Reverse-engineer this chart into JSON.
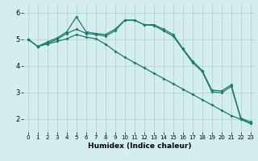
{
  "xlabel": "Humidex (Indice chaleur)",
  "bg_color": "#d4eeed",
  "line_color": "#1a7a6e",
  "grid_color": "#aacfcf",
  "xlim": [
    -0.5,
    23.5
  ],
  "ylim": [
    1.5,
    6.3
  ],
  "yticks": [
    2,
    3,
    4,
    5,
    6
  ],
  "xtick_labels": [
    "0",
    "1",
    "2",
    "3",
    "4",
    "5",
    "6",
    "7",
    "8",
    "9",
    "10",
    "11",
    "12",
    "13",
    "14",
    "15",
    "16",
    "17",
    "18",
    "19",
    "20",
    "21",
    "22",
    "23"
  ],
  "line1_x": [
    0,
    1,
    2,
    3,
    4,
    5,
    6,
    7,
    8,
    9,
    10,
    11,
    12,
    13,
    14,
    15,
    16,
    17,
    18,
    19,
    20,
    21,
    22,
    23
  ],
  "line1_y": [
    5.0,
    4.73,
    4.9,
    5.05,
    5.28,
    5.85,
    5.28,
    5.22,
    5.18,
    5.38,
    5.72,
    5.72,
    5.55,
    5.55,
    5.38,
    5.18,
    4.65,
    4.18,
    3.82,
    3.08,
    3.05,
    3.28,
    2.02,
    1.88
  ],
  "line2_x": [
    0,
    1,
    2,
    3,
    4,
    5,
    6,
    7,
    8,
    9,
    10,
    11,
    12,
    13,
    14,
    15,
    16,
    17,
    18,
    19,
    20,
    21,
    22,
    23
  ],
  "line2_y": [
    5.0,
    4.73,
    4.85,
    5.0,
    5.22,
    5.38,
    5.22,
    5.18,
    5.12,
    5.32,
    5.72,
    5.72,
    5.55,
    5.52,
    5.32,
    5.12,
    4.62,
    4.12,
    3.78,
    3.02,
    2.98,
    3.22,
    1.98,
    1.82
  ],
  "line3_x": [
    0,
    1,
    2,
    3,
    4,
    5,
    6,
    7,
    8,
    9,
    10,
    11,
    12,
    13,
    14,
    15,
    16,
    17,
    18,
    19,
    20,
    21,
    22,
    23
  ],
  "line3_y": [
    5.0,
    4.73,
    4.82,
    4.92,
    5.02,
    5.18,
    5.08,
    5.02,
    4.82,
    4.55,
    4.32,
    4.12,
    3.92,
    3.72,
    3.52,
    3.32,
    3.12,
    2.92,
    2.72,
    2.52,
    2.32,
    2.12,
    1.98,
    1.82
  ]
}
